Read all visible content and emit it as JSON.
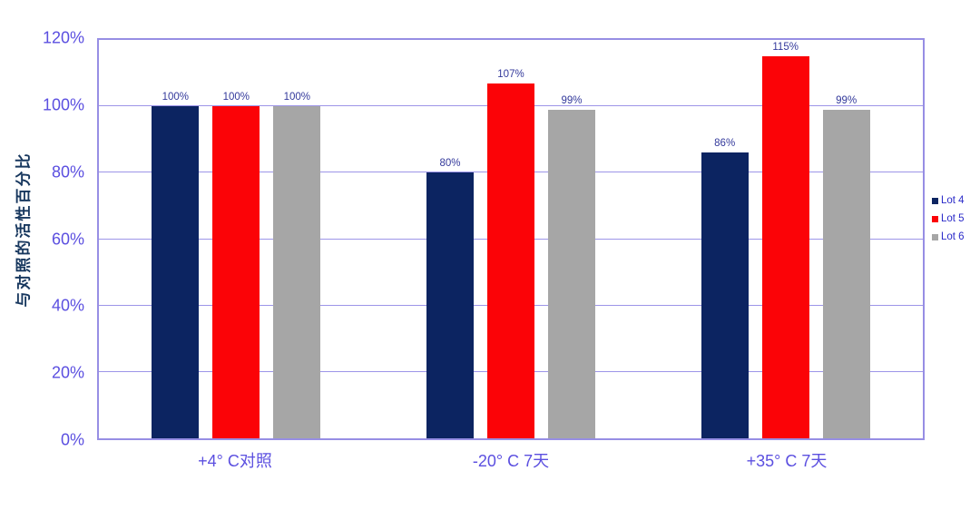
{
  "chart_data": {
    "type": "bar",
    "title": "",
    "xlabel": "",
    "ylabel": "与对照的活性百分比",
    "categories": [
      "+4° C对照",
      "-20° C 7天",
      "+35° C 7天"
    ],
    "series": [
      {
        "name": "Lot 4",
        "color": "#0C2461",
        "values": [
          100,
          80,
          86
        ],
        "labels": [
          "100%",
          "80%",
          "86%"
        ]
      },
      {
        "name": "Lot 5",
        "color": "#FB0307",
        "values": [
          100,
          107,
          115
        ],
        "labels": [
          "100%",
          "107%",
          "115%"
        ]
      },
      {
        "name": "Lot 6",
        "color": "#A6A6A6",
        "values": [
          100,
          99,
          99
        ],
        "labels": [
          "100%",
          "99%",
          "99%"
        ]
      }
    ],
    "ylim": [
      0,
      120
    ],
    "ytick_step": 20,
    "ytick_labels": [
      "0%",
      "20%",
      "40%",
      "60%",
      "80%",
      "100%",
      "120%"
    ],
    "grid": true,
    "legend_position": "right"
  },
  "colors": {
    "axis_tick_text": "#5B4FE0",
    "axis_title_text": "#17375E",
    "data_label_text": "#33399B",
    "legend_text": "#2B2BC9",
    "gridline": "#9D95E8",
    "plot_border": "#978EE4",
    "background": "#FFFFFF"
  }
}
